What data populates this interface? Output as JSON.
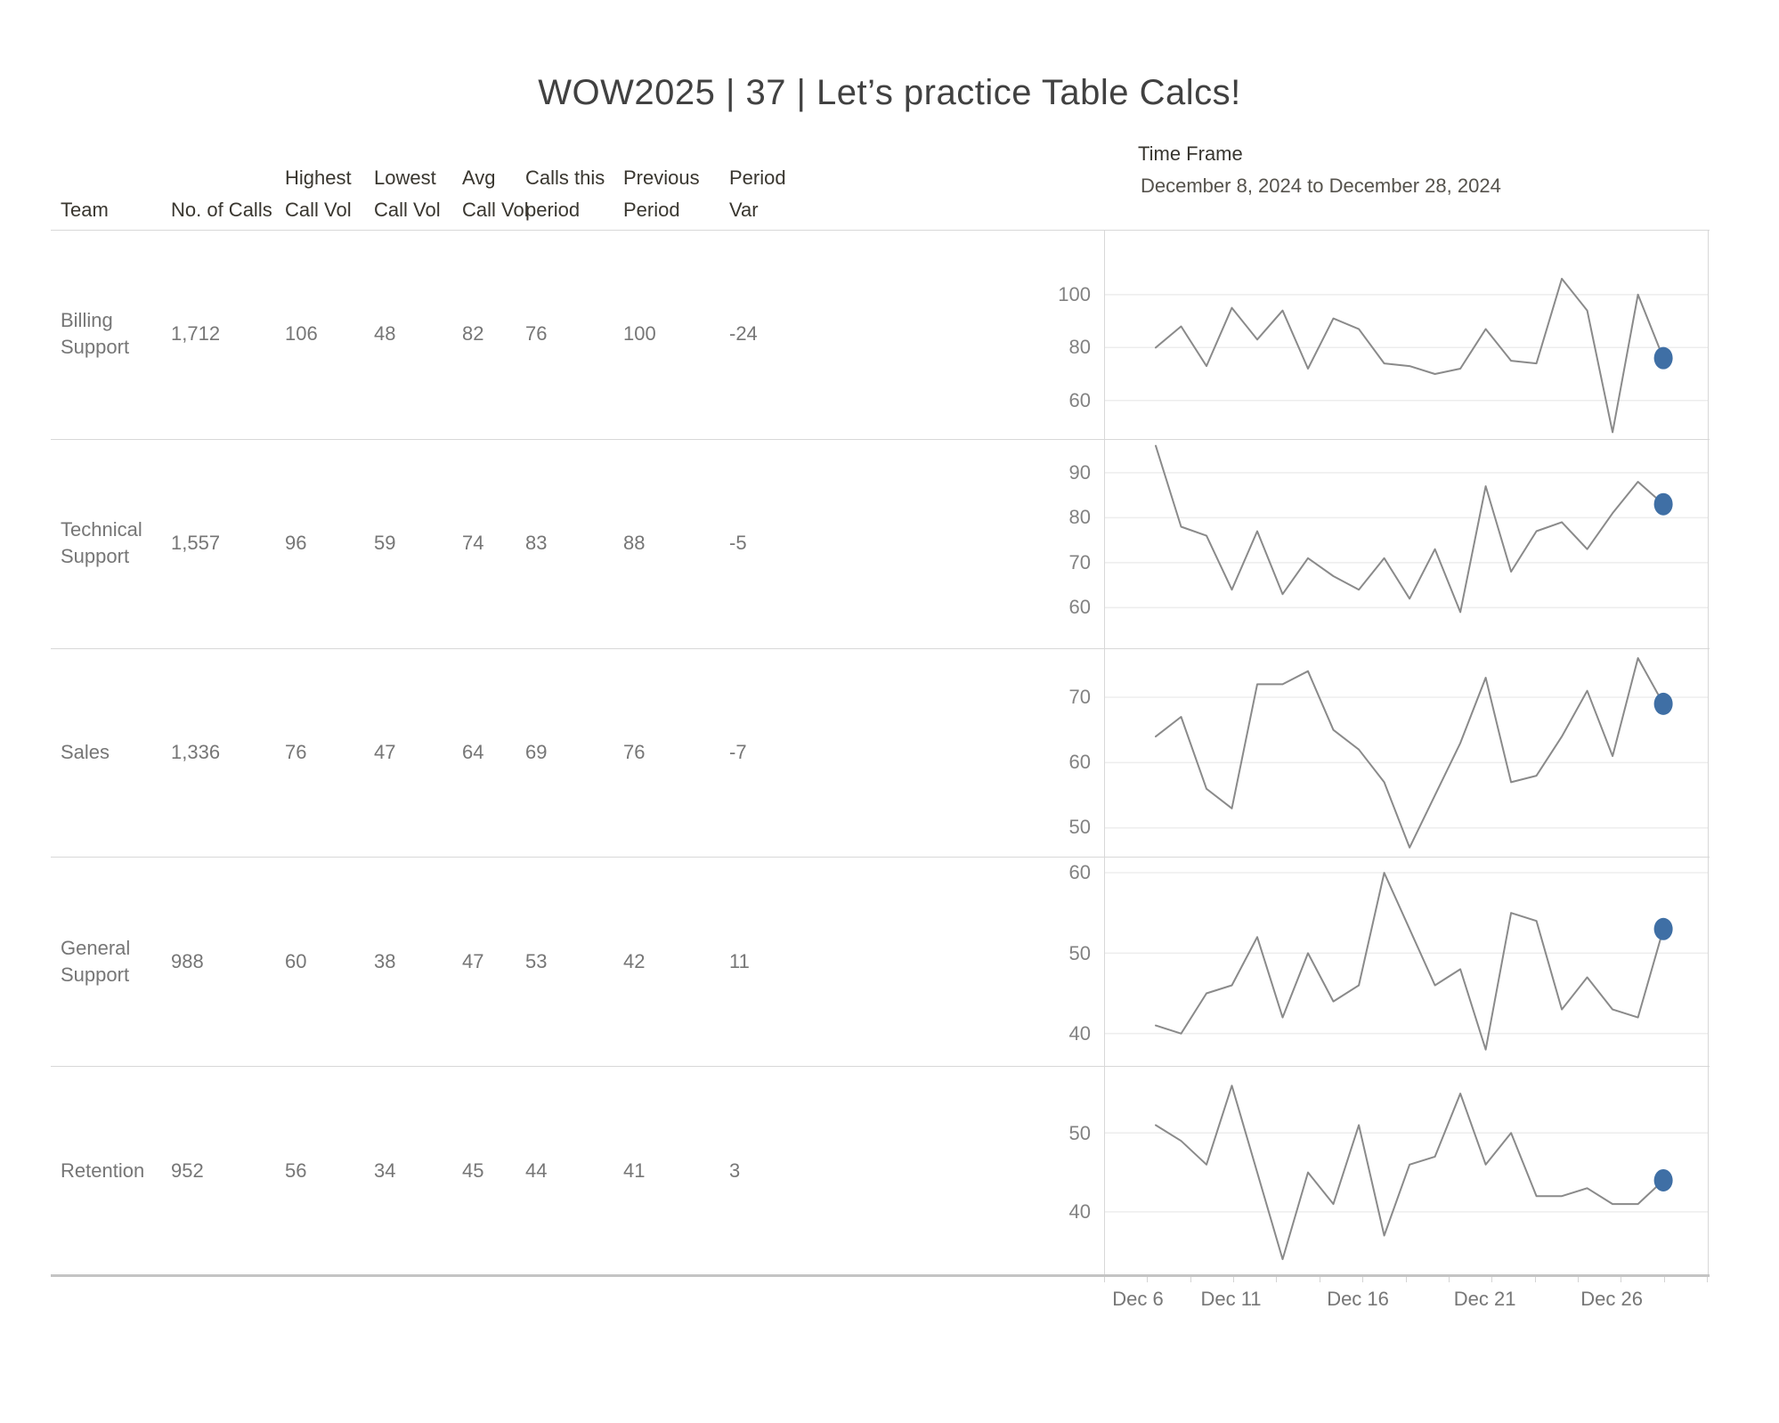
{
  "title": "WOW2025 | 37 | Let’s practice Table Calcs!",
  "time_frame": {
    "label": "Time Frame",
    "range": "December 8, 2024 to December 28, 2024"
  },
  "columns": [
    {
      "line1": "",
      "line2": "Team"
    },
    {
      "line1": "",
      "line2": "No. of Calls"
    },
    {
      "line1": "Highest",
      "line2": "Call Vol"
    },
    {
      "line1": "Lowest",
      "line2": "Call Vol"
    },
    {
      "line1": "Avg",
      "line2": "Call Vol"
    },
    {
      "line1": "Calls this",
      "line2": "period"
    },
    {
      "line1": "Previous",
      "line2": "Period"
    },
    {
      "line1": "Period",
      "line2": "Var"
    }
  ],
  "rows": [
    {
      "team": "Billing Support",
      "calls": "1,712",
      "highest": "106",
      "lowest": "48",
      "avg": "82",
      "this_period": "76",
      "prev_period": "100",
      "var": "-24"
    },
    {
      "team": "Technical Support",
      "calls": "1,557",
      "highest": "96",
      "lowest": "59",
      "avg": "74",
      "this_period": "83",
      "prev_period": "88",
      "var": "-5"
    },
    {
      "team": "Sales",
      "calls": "1,336",
      "highest": "76",
      "lowest": "47",
      "avg": "64",
      "this_period": "69",
      "prev_period": "76",
      "var": "-7"
    },
    {
      "team": "General Support",
      "calls": "988",
      "highest": "60",
      "lowest": "38",
      "avg": "47",
      "this_period": "53",
      "prev_period": "42",
      "var": "11"
    },
    {
      "team": "Retention",
      "calls": "952",
      "highest": "56",
      "lowest": "34",
      "avg": "45",
      "this_period": "44",
      "prev_period": "41",
      "var": "3"
    }
  ],
  "chart_data": {
    "type": "line",
    "title": "Daily call volume sparklines by team, December 8-28, 2024",
    "x_unit": "day of December 2024",
    "x_days": [
      8,
      9,
      10,
      11,
      12,
      13,
      14,
      15,
      16,
      17,
      18,
      19,
      20,
      21,
      22,
      23,
      24,
      25,
      26,
      27,
      28
    ],
    "x_domain": [
      6,
      29.75
    ],
    "x_ticks": [
      {
        "label": "Dec 6",
        "day": 6
      },
      {
        "label": "Dec 11",
        "day": 11
      },
      {
        "label": "Dec 16",
        "day": 16
      },
      {
        "label": "Dec 21",
        "day": 21
      },
      {
        "label": "Dec 26",
        "day": 26
      }
    ],
    "grid": "horizontal-only",
    "legend": "none",
    "last_point_marker": true,
    "series": [
      {
        "name": "Billing Support",
        "ylim": [
          45.5,
          124.5
        ],
        "y_gridlines": [
          100,
          80,
          60
        ],
        "values": [
          80,
          88,
          73,
          95,
          83,
          94,
          72,
          91,
          87,
          74,
          73,
          70,
          72,
          87,
          75,
          74,
          106,
          94,
          48,
          100,
          76
        ]
      },
      {
        "name": "Technical Support",
        "ylim": [
          51,
          97.5
        ],
        "y_gridlines": [
          90,
          80,
          70,
          60
        ],
        "values": [
          96,
          78,
          76,
          64,
          77,
          63,
          71,
          67,
          64,
          71,
          62,
          73,
          59,
          87,
          68,
          77,
          79,
          73,
          81,
          88,
          83
        ]
      },
      {
        "name": "Sales",
        "ylim": [
          45.5,
          77.5
        ],
        "y_gridlines": [
          70,
          60,
          50
        ],
        "values": [
          64,
          67,
          56,
          53,
          72,
          72,
          74,
          65,
          62,
          57,
          47,
          55,
          63,
          73,
          57,
          58,
          64,
          71,
          61,
          76,
          69
        ]
      },
      {
        "name": "General Support",
        "ylim": [
          36,
          62
        ],
        "y_gridlines": [
          60,
          50,
          40
        ],
        "values": [
          41,
          40,
          45,
          46,
          52,
          42,
          50,
          44,
          46,
          60,
          53,
          46,
          48,
          38,
          55,
          54,
          43,
          47,
          43,
          42,
          53
        ]
      },
      {
        "name": "Retention",
        "ylim": [
          32,
          58.5
        ],
        "y_gridlines": [
          50,
          40
        ],
        "values": [
          51,
          49,
          46,
          56,
          45,
          34,
          45,
          41,
          51,
          37,
          46,
          47,
          55,
          46,
          50,
          42,
          42,
          43,
          41,
          41,
          44
        ]
      }
    ]
  },
  "colors": {
    "line": "#8a8a8a",
    "dot": "#3f6fa5",
    "gridline": "#ededed",
    "separator": "#d8d8d8"
  }
}
